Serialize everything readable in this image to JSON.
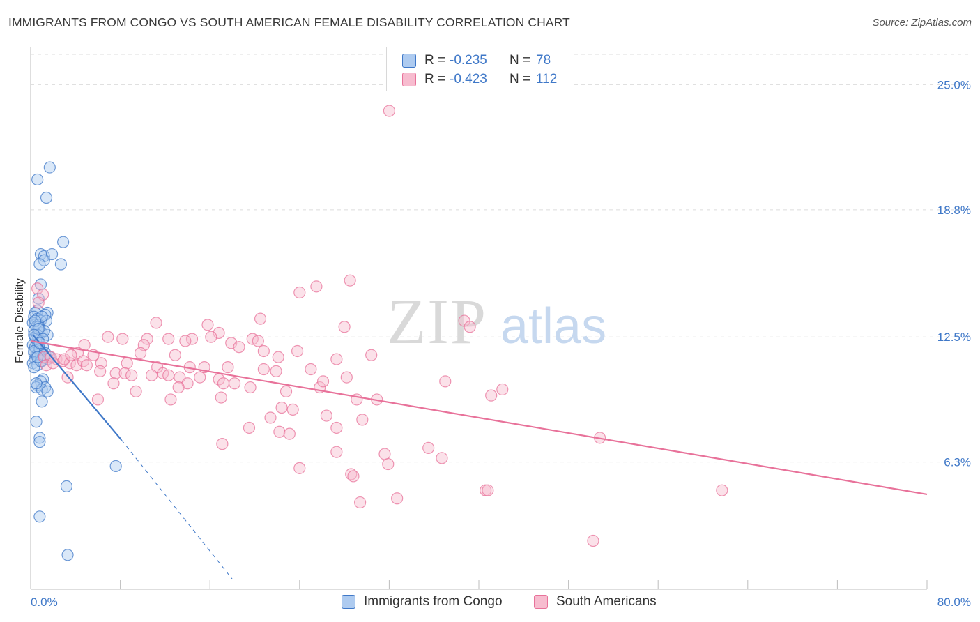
{
  "title": "IMMIGRANTS FROM CONGO VS SOUTH AMERICAN FEMALE DISABILITY CORRELATION CHART",
  "source": "Source: ZipAtlas.com",
  "colors": {
    "blue": "#3f78c8",
    "blue_fill": "#aecbf0",
    "pink": "#e8729a",
    "pink_fill": "#f7bccf",
    "grid": "#dcdcdc"
  },
  "legend": {
    "rows": [
      {
        "label": "R =",
        "r": "-0.235",
        "n_label": "N =",
        "n": "78"
      },
      {
        "label": "R =",
        "r": "-0.423",
        "n_label": "N =",
        "n": "112"
      }
    ]
  },
  "bottom_legend": {
    "series1": "Immigrants from Congo",
    "series2": "South Americans"
  },
  "chart_data": {
    "type": "scatter",
    "title": "IMMIGRANTS FROM CONGO VS SOUTH AMERICAN FEMALE DISABILITY CORRELATION CHART",
    "xlabel": "",
    "ylabel": "Female Disability",
    "xlim": [
      0,
      80
    ],
    "ylim": [
      0,
      26.5
    ],
    "x_tick_labels": [
      "0.0%",
      "80.0%"
    ],
    "y_ticks": [
      6.3,
      12.5,
      18.8,
      25.0
    ],
    "y_tick_labels": [
      "6.3%",
      "12.5%",
      "18.8%",
      "25.0%"
    ],
    "watermark": "ZIPatlas",
    "series": [
      {
        "name": "Immigrants from Congo",
        "r": -0.235,
        "n": 78,
        "trend": {
          "x": [
            0.2,
            8.1
          ],
          "y": [
            12.6,
            7.4
          ],
          "dashed_to": [
            18.0,
            0.5
          ]
        },
        "points": [
          [
            1.7,
            20.9
          ],
          [
            0.6,
            20.3
          ],
          [
            1.4,
            19.4
          ],
          [
            2.9,
            17.2
          ],
          [
            0.9,
            16.6
          ],
          [
            1.2,
            16.5
          ],
          [
            1.9,
            16.6
          ],
          [
            1.2,
            16.3
          ],
          [
            0.8,
            16.1
          ],
          [
            2.7,
            16.1
          ],
          [
            0.9,
            15.1
          ],
          [
            0.7,
            14.4
          ],
          [
            0.6,
            13.8
          ],
          [
            0.4,
            13.7
          ],
          [
            1.5,
            13.7
          ],
          [
            1.3,
            13.6
          ],
          [
            0.3,
            13.5
          ],
          [
            0.6,
            13.4
          ],
          [
            0.9,
            13.3
          ],
          [
            0.4,
            13.1
          ],
          [
            1.4,
            13.3
          ],
          [
            0.2,
            13.2
          ],
          [
            0.7,
            13.1
          ],
          [
            0.5,
            13.0
          ],
          [
            0.8,
            12.9
          ],
          [
            0.3,
            12.8
          ],
          [
            1.0,
            12.7
          ],
          [
            1.5,
            12.6
          ],
          [
            0.4,
            12.5
          ],
          [
            0.6,
            12.3
          ],
          [
            0.7,
            12.2
          ],
          [
            1.1,
            12.0
          ],
          [
            0.2,
            12.1
          ],
          [
            0.5,
            11.9
          ],
          [
            0.8,
            11.8
          ],
          [
            1.3,
            11.7
          ],
          [
            0.3,
            11.7
          ],
          [
            0.6,
            11.6
          ],
          [
            0.9,
            11.5
          ],
          [
            1.7,
            11.5
          ],
          [
            0.4,
            11.4
          ],
          [
            0.2,
            11.2
          ],
          [
            1.0,
            11.3
          ],
          [
            0.6,
            11.1
          ],
          [
            1.1,
            10.4
          ],
          [
            0.9,
            10.3
          ],
          [
            0.6,
            10.1
          ],
          [
            0.5,
            10.0
          ],
          [
            1.3,
            10.0
          ],
          [
            1.0,
            9.9
          ],
          [
            1.5,
            9.8
          ],
          [
            1.0,
            9.3
          ],
          [
            0.5,
            8.3
          ],
          [
            0.8,
            7.5
          ],
          [
            0.8,
            7.3
          ],
          [
            7.6,
            6.1
          ],
          [
            3.2,
            5.1
          ],
          [
            0.8,
            3.6
          ],
          [
            3.3,
            1.7
          ],
          [
            0.3,
            11.0
          ],
          [
            0.7,
            13.0
          ],
          [
            1.2,
            12.8
          ],
          [
            0.4,
            12.0
          ],
          [
            0.8,
            11.9
          ],
          [
            1.5,
            11.4
          ],
          [
            0.3,
            11.8
          ],
          [
            0.6,
            12.6
          ],
          [
            1.0,
            13.5
          ],
          [
            0.5,
            12.4
          ],
          [
            0.9,
            11.3
          ],
          [
            1.2,
            11.6
          ],
          [
            0.4,
            13.3
          ],
          [
            0.7,
            12.9
          ],
          [
            0.3,
            12.6
          ],
          [
            0.6,
            11.5
          ],
          [
            1.1,
            12.4
          ],
          [
            0.8,
            12.2
          ],
          [
            0.5,
            10.2
          ]
        ]
      },
      {
        "name": "South Americans",
        "r": -0.423,
        "n": 112,
        "trend": {
          "x": [
            0.0,
            80.0
          ],
          "y": [
            12.3,
            4.7
          ]
        },
        "points": [
          [
            32.0,
            23.7
          ],
          [
            28.5,
            15.3
          ],
          [
            25.5,
            15.0
          ],
          [
            24.0,
            14.7
          ],
          [
            0.6,
            14.9
          ],
          [
            1.1,
            14.6
          ],
          [
            0.7,
            14.2
          ],
          [
            20.5,
            13.4
          ],
          [
            38.7,
            13.3
          ],
          [
            11.2,
            13.2
          ],
          [
            15.8,
            13.1
          ],
          [
            28.0,
            13.0
          ],
          [
            39.2,
            13.0
          ],
          [
            16.8,
            12.7
          ],
          [
            16.1,
            12.5
          ],
          [
            6.9,
            12.5
          ],
          [
            8.2,
            12.4
          ],
          [
            10.4,
            12.4
          ],
          [
            12.3,
            12.4
          ],
          [
            14.4,
            12.4
          ],
          [
            19.8,
            12.4
          ],
          [
            20.3,
            12.3
          ],
          [
            13.8,
            12.3
          ],
          [
            17.9,
            12.2
          ],
          [
            4.8,
            12.1
          ],
          [
            10.1,
            12.1
          ],
          [
            18.6,
            12.0
          ],
          [
            20.8,
            11.8
          ],
          [
            23.8,
            11.8
          ],
          [
            12.9,
            11.6
          ],
          [
            4.2,
            11.7
          ],
          [
            5.6,
            11.6
          ],
          [
            22.1,
            11.5
          ],
          [
            27.3,
            11.4
          ],
          [
            30.4,
            11.6
          ],
          [
            1.2,
            11.5
          ],
          [
            2.3,
            11.4
          ],
          [
            2.9,
            11.3
          ],
          [
            3.5,
            11.2
          ],
          [
            4.1,
            11.1
          ],
          [
            4.7,
            11.3
          ],
          [
            5.0,
            11.1
          ],
          [
            6.3,
            11.2
          ],
          [
            8.6,
            11.2
          ],
          [
            3.0,
            11.4
          ],
          [
            1.8,
            11.5
          ],
          [
            1.4,
            11.1
          ],
          [
            2.0,
            11.2
          ],
          [
            14.2,
            11.0
          ],
          [
            11.3,
            11.0
          ],
          [
            15.5,
            11.0
          ],
          [
            17.6,
            11.0
          ],
          [
            20.8,
            10.9
          ],
          [
            21.9,
            10.8
          ],
          [
            25.0,
            10.9
          ],
          [
            6.2,
            10.8
          ],
          [
            7.6,
            10.7
          ],
          [
            8.4,
            10.7
          ],
          [
            9.0,
            10.6
          ],
          [
            10.8,
            10.6
          ],
          [
            11.8,
            10.7
          ],
          [
            12.3,
            10.6
          ],
          [
            13.3,
            10.5
          ],
          [
            15.1,
            10.5
          ],
          [
            16.8,
            10.4
          ],
          [
            17.2,
            10.2
          ],
          [
            18.2,
            10.2
          ],
          [
            28.2,
            10.5
          ],
          [
            3.3,
            10.5
          ],
          [
            7.4,
            10.2
          ],
          [
            14.0,
            10.2
          ],
          [
            19.6,
            10.0
          ],
          [
            25.8,
            10.0
          ],
          [
            26.1,
            10.3
          ],
          [
            37.0,
            10.3
          ],
          [
            13.2,
            10.0
          ],
          [
            9.4,
            9.8
          ],
          [
            42.1,
            9.9
          ],
          [
            22.8,
            9.8
          ],
          [
            41.1,
            9.6
          ],
          [
            17.0,
            9.5
          ],
          [
            29.1,
            9.4
          ],
          [
            30.9,
            9.4
          ],
          [
            6.0,
            9.4
          ],
          [
            12.5,
            9.4
          ],
          [
            22.4,
            9.0
          ],
          [
            23.4,
            8.9
          ],
          [
            26.4,
            8.6
          ],
          [
            21.4,
            8.5
          ],
          [
            29.6,
            8.4
          ],
          [
            19.5,
            8.0
          ],
          [
            27.3,
            8.0
          ],
          [
            22.2,
            7.8
          ],
          [
            23.1,
            7.7
          ],
          [
            50.8,
            7.5
          ],
          [
            17.1,
            7.2
          ],
          [
            35.5,
            7.0
          ],
          [
            27.3,
            6.8
          ],
          [
            31.6,
            6.7
          ],
          [
            36.7,
            6.5
          ],
          [
            31.9,
            6.2
          ],
          [
            24.0,
            6.0
          ],
          [
            28.6,
            5.7
          ],
          [
            28.8,
            5.6
          ],
          [
            40.6,
            4.9
          ],
          [
            40.8,
            4.9
          ],
          [
            61.7,
            4.9
          ],
          [
            32.7,
            4.5
          ],
          [
            29.4,
            4.3
          ],
          [
            50.2,
            2.4
          ],
          [
            9.8,
            11.7
          ],
          [
            3.6,
            11.6
          ]
        ]
      }
    ]
  }
}
